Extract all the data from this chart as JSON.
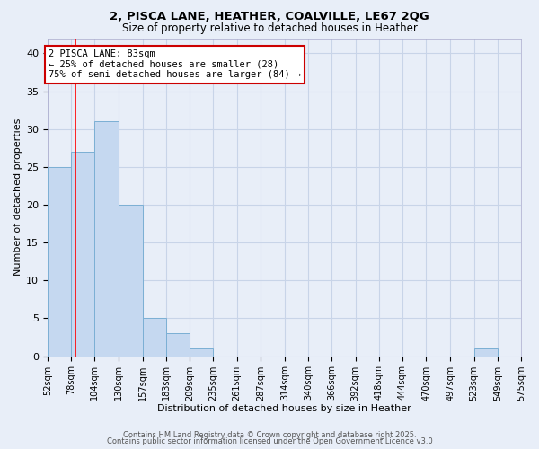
{
  "title1": "2, PISCA LANE, HEATHER, COALVILLE, LE67 2QG",
  "title2": "Size of property relative to detached houses in Heather",
  "xlabel": "Distribution of detached houses by size in Heather",
  "ylabel": "Number of detached properties",
  "bin_edges": [
    52,
    78,
    104,
    130,
    157,
    183,
    209,
    235,
    261,
    287,
    314,
    340,
    366,
    392,
    418,
    444,
    470,
    497,
    523,
    549,
    575
  ],
  "counts": [
    25,
    27,
    31,
    20,
    5,
    3,
    1,
    0,
    0,
    0,
    0,
    0,
    0,
    0,
    0,
    0,
    0,
    0,
    1,
    0
  ],
  "bar_color": "#c5d8f0",
  "bar_edge_color": "#7bafd4",
  "red_line_x": 83,
  "ylim": [
    0,
    42
  ],
  "yticks": [
    0,
    5,
    10,
    15,
    20,
    25,
    30,
    35,
    40
  ],
  "annotation_text": "2 PISCA LANE: 83sqm\n← 25% of detached houses are smaller (28)\n75% of semi-detached houses are larger (84) →",
  "annotation_box_color": "#ffffff",
  "annotation_box_edge": "#cc0000",
  "bg_color": "#e8eef8",
  "grid_color": "#c8d4e8",
  "footer1": "Contains HM Land Registry data © Crown copyright and database right 2025.",
  "footer2": "Contains public sector information licensed under the Open Government Licence v3.0"
}
